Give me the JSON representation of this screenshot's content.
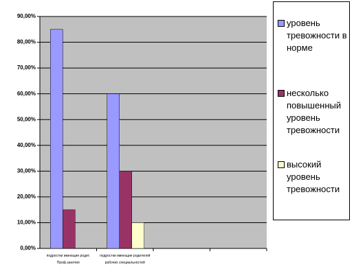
{
  "chart_data": {
    "type": "bar",
    "categories": [
      "подростки имеющие родит. Проф.занятия",
      "подростки имеющие родителей рабочих специальностей",
      null,
      null
    ],
    "series": [
      {
        "name": "уровень тревожности в норме",
        "color": "#9999ff",
        "values": [
          85,
          60,
          null,
          null
        ]
      },
      {
        "name": "несколько повышенный уровень тревожности",
        "color": "#993366",
        "values": [
          15,
          30,
          null,
          null
        ]
      },
      {
        "name": "высокий уровень тревожности",
        "color": "#ffffcc",
        "values": [
          0,
          10,
          null,
          null
        ]
      }
    ],
    "ylim": [
      0,
      90
    ],
    "yticks": [
      {
        "value": 0,
        "label": "0,00%"
      },
      {
        "value": 10,
        "label": "10,00%"
      },
      {
        "value": 20,
        "label": "20,00%"
      },
      {
        "value": 30,
        "label": "30,00%"
      },
      {
        "value": 40,
        "label": "40,00%"
      },
      {
        "value": 50,
        "label": "50,00%"
      },
      {
        "value": 60,
        "label": "60,00%"
      },
      {
        "value": 70,
        "label": "70,00%"
      },
      {
        "value": 80,
        "label": "80,00%"
      },
      {
        "value": 90,
        "label": "90,00%"
      }
    ],
    "grid": true,
    "background": "#c0c0c0",
    "legend": "right"
  }
}
